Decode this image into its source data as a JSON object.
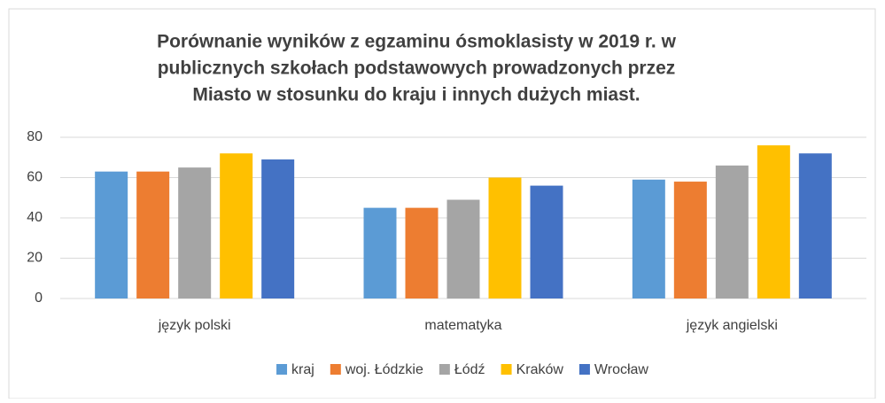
{
  "chart_data": {
    "type": "bar",
    "title": [
      "Porównanie wyników z egzaminu ósmoklasisty w 2019 r. w",
      "publicznych szkołach podstawowych prowadzonych przez",
      "Miasto w stosunku do kraju i innych dużych miast."
    ],
    "categories": [
      "język polski",
      "matematyka",
      "język angielski"
    ],
    "series": [
      {
        "name": "kraj",
        "color": "#5b9bd5",
        "values": [
          63,
          45,
          59
        ]
      },
      {
        "name": "woj. Łódzkie",
        "color": "#ed7d31",
        "values": [
          63,
          45,
          58
        ]
      },
      {
        "name": "Łódź",
        "color": "#a5a5a5",
        "values": [
          65,
          49,
          66
        ]
      },
      {
        "name": "Kraków",
        "color": "#ffc000",
        "values": [
          72,
          60,
          76
        ]
      },
      {
        "name": "Wrocław",
        "color": "#4472c4",
        "values": [
          69,
          56,
          72
        ]
      }
    ],
    "ylim": [
      0,
      80
    ],
    "yticks": [
      0,
      20,
      40,
      60,
      80
    ],
    "grid": true,
    "legend": "bottom"
  }
}
